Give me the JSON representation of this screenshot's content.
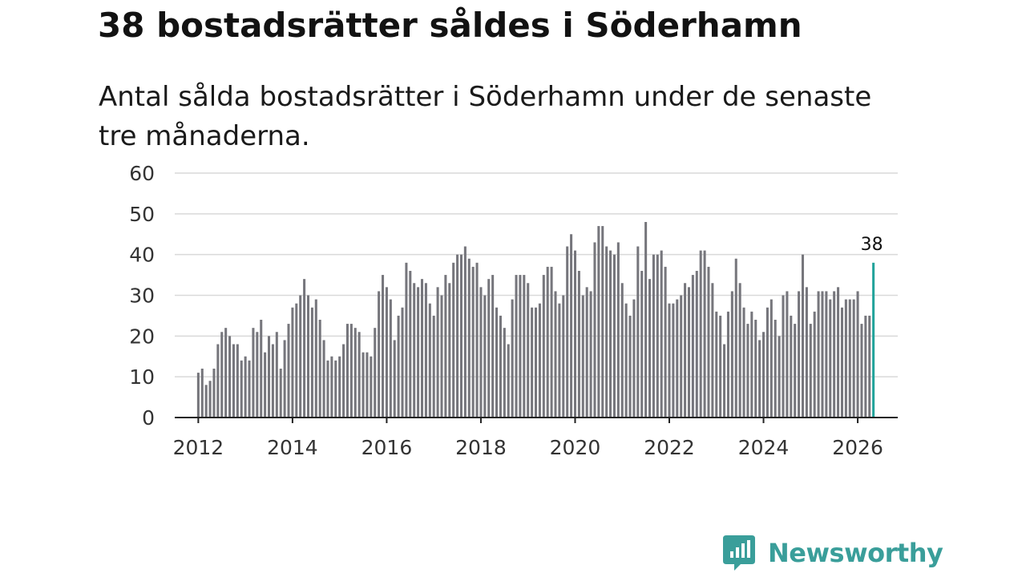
{
  "title": "38 bostadsrätter såldes i Söderhamn",
  "subtitle": "Antal sålda bostadsrätter i Söderhamn under de senaste tre månaderna.",
  "brand": "Newsworthy",
  "colors": {
    "bar": "#76767c",
    "highlight": "#22a39b",
    "grid": "#d9d9d9",
    "axis": "#222222",
    "brand": "#3a9e9a"
  },
  "chart_data": {
    "type": "bar",
    "start": "2012-01",
    "values": [
      11,
      12,
      8,
      9,
      12,
      18,
      21,
      22,
      20,
      18,
      18,
      14,
      15,
      14,
      22,
      21,
      24,
      16,
      20,
      18,
      21,
      12,
      19,
      23,
      27,
      28,
      30,
      34,
      30,
      27,
      29,
      24,
      19,
      14,
      15,
      14,
      15,
      18,
      23,
      23,
      22,
      21,
      16,
      16,
      15,
      22,
      31,
      35,
      32,
      29,
      19,
      25,
      27,
      38,
      36,
      33,
      32,
      34,
      33,
      28,
      25,
      32,
      30,
      35,
      33,
      38,
      40,
      40,
      42,
      39,
      37,
      38,
      32,
      30,
      34,
      35,
      27,
      25,
      22,
      18,
      29,
      35,
      35,
      35,
      33,
      27,
      27,
      28,
      35,
      37,
      37,
      31,
      28,
      30,
      42,
      45,
      41,
      36,
      30,
      32,
      31,
      43,
      47,
      47,
      42,
      41,
      40,
      43,
      33,
      28,
      25,
      29,
      42,
      36,
      48,
      34,
      40,
      40,
      41,
      37,
      28,
      28,
      29,
      30,
      33,
      32,
      35,
      36,
      41,
      41,
      37,
      33,
      26,
      25,
      18,
      26,
      31,
      39,
      33,
      27,
      23,
      26,
      24,
      19,
      21,
      27,
      29,
      24,
      20,
      30,
      31,
      25,
      23,
      31,
      40,
      32,
      23,
      26,
      31,
      31,
      31,
      29,
      31,
      32,
      27,
      29,
      29,
      29,
      31,
      23,
      25,
      25,
      38
    ],
    "highlight_last": true,
    "value_label": "38",
    "y_ticks": [
      0,
      10,
      20,
      30,
      40,
      50,
      60
    ],
    "x_ticks": [
      2012,
      2014,
      2016,
      2018,
      2020,
      2022,
      2024,
      2026
    ],
    "ylim": [
      0,
      60
    ],
    "xlim_years": [
      2011.5,
      2026.85
    ],
    "grid": true,
    "title": "38 bostadsrätter såldes i Söderhamn",
    "subtitle": "Antal sålda bostadsrätter i Söderhamn under de senaste tre månaderna.",
    "xlabel": "",
    "ylabel": ""
  }
}
